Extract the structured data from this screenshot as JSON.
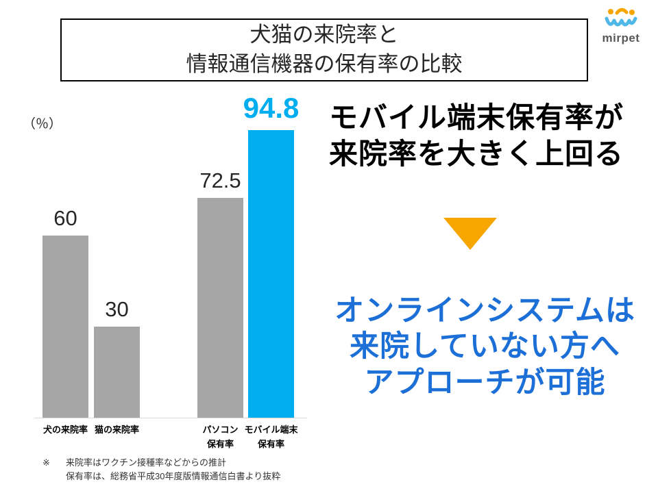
{
  "slide": {
    "title_line1": "犬猫の来院率と",
    "title_line2": "情報通信機器の保有率の比較",
    "logo_text": "mirpet",
    "unit_label": "（％）",
    "headline_line1": "モバイル端末保有率が",
    "headline_line2": "来院率を大きく上回る",
    "callout_line1": "オンラインシステムは",
    "callout_line2": "来院していない方へ",
    "callout_line3": "アプローチが可能",
    "footnote_marker": "※",
    "footnote_line1": "来院率はワクチン接種率などからの推計",
    "footnote_line2": "保有率は、総務省平成30年度版情報通信白書より抜粋"
  },
  "icons": {
    "logo_icon": "paw-smile-icon",
    "arrow_icon": "down-triangle-icon"
  },
  "colors": {
    "bar_gray": "#A6A6A6",
    "bar_blue": "#00AEEF",
    "callout_blue": "#1B6FD6",
    "arrow_orange": "#F7A600"
  },
  "chart_data": {
    "type": "bar",
    "title": "犬猫の来院率と情報通信機器の保有率の比較",
    "xlabel": "",
    "ylabel": "（％）",
    "ylim": [
      0,
      100
    ],
    "grid": false,
    "legend": false,
    "categories": [
      "犬の来院率",
      "猫の来院率",
      "パソコン保有率",
      "モバイル端末保有率"
    ],
    "values": [
      60,
      30,
      72.5,
      94.8
    ],
    "value_labels": [
      "60",
      "30",
      "72.5",
      "94.8"
    ],
    "category_label_lines": [
      [
        "犬の来院率"
      ],
      [
        "猫の来院率"
      ],
      [
        "パソコン",
        "保有率"
      ],
      [
        "モバイル端末",
        "保有率"
      ]
    ],
    "bar_colors": [
      "#A6A6A6",
      "#A6A6A6",
      "#A6A6A6",
      "#00AEEF"
    ],
    "highlight_index": 3
  }
}
